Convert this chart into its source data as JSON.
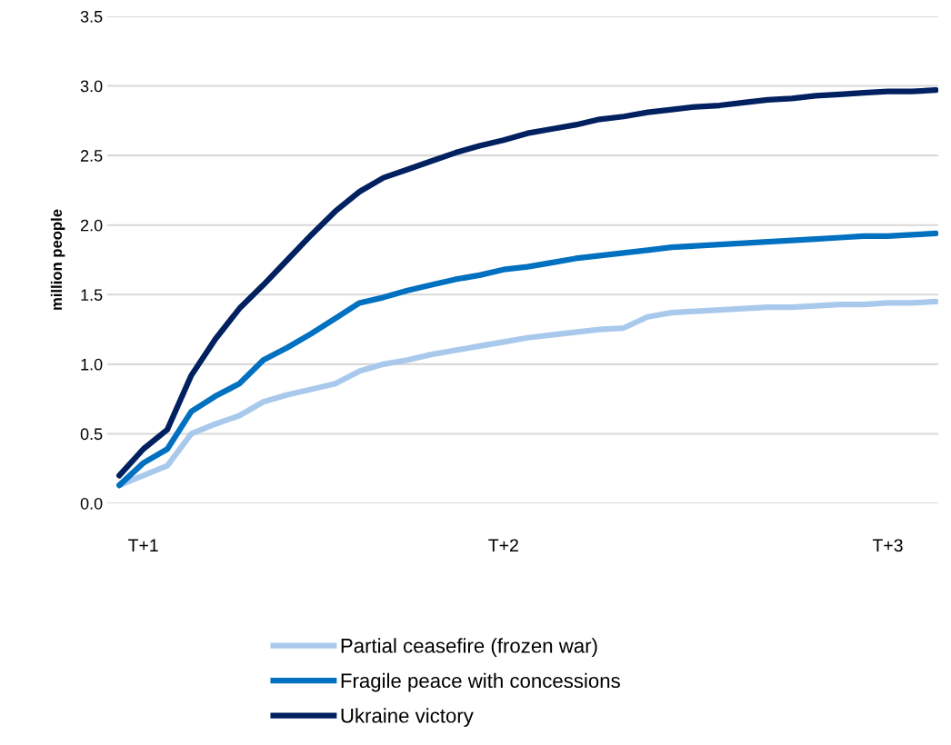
{
  "chart_data": {
    "type": "line",
    "ylabel": "million people",
    "categories": [
      null,
      "T+1",
      null,
      null,
      null,
      null,
      null,
      null,
      null,
      null,
      null,
      null,
      null,
      null,
      null,
      null,
      "T+2",
      null,
      null,
      null,
      null,
      null,
      null,
      null,
      null,
      null,
      null,
      null,
      null,
      null,
      null,
      null,
      "T+3",
      null,
      null
    ],
    "series": [
      {
        "name": "Partial ceasefire (frozen war)",
        "color": "#a9c9ec",
        "values": [
          0.13,
          0.2,
          0.27,
          0.5,
          0.57,
          0.63,
          0.73,
          0.78,
          0.82,
          0.86,
          0.95,
          1.0,
          1.03,
          1.07,
          1.1,
          1.13,
          1.16,
          1.19,
          1.21,
          1.23,
          1.25,
          1.26,
          1.34,
          1.37,
          1.38,
          1.39,
          1.4,
          1.41,
          1.41,
          1.42,
          1.43,
          1.43,
          1.44,
          1.44,
          1.45
        ]
      },
      {
        "name": "Fragile peace with concessions",
        "color": "#0070c0",
        "values": [
          0.13,
          0.29,
          0.39,
          0.66,
          0.77,
          0.86,
          1.03,
          1.12,
          1.22,
          1.33,
          1.44,
          1.48,
          1.53,
          1.57,
          1.61,
          1.64,
          1.68,
          1.7,
          1.73,
          1.76,
          1.78,
          1.8,
          1.82,
          1.84,
          1.85,
          1.86,
          1.87,
          1.88,
          1.89,
          1.9,
          1.91,
          1.92,
          1.92,
          1.93,
          1.94
        ]
      },
      {
        "name": "Ukraine victory",
        "color": "#002060",
        "values": [
          0.2,
          0.39,
          0.53,
          0.92,
          1.18,
          1.4,
          1.57,
          1.75,
          1.93,
          2.1,
          2.24,
          2.34,
          2.4,
          2.46,
          2.52,
          2.57,
          2.61,
          2.66,
          2.69,
          2.72,
          2.76,
          2.78,
          2.81,
          2.83,
          2.85,
          2.86,
          2.88,
          2.9,
          2.91,
          2.93,
          2.94,
          2.95,
          2.96,
          2.96,
          2.97
        ]
      }
    ],
    "ylim": [
      0,
      3.5
    ],
    "yticks": [
      {
        "value": 0,
        "label": "0.0"
      },
      {
        "value": 0.5,
        "label": "0.5"
      },
      {
        "value": 1,
        "label": "1.0"
      },
      {
        "value": 1.5,
        "label": "1.5"
      },
      {
        "value": 2,
        "label": "2.0"
      },
      {
        "value": 2.5,
        "label": "2.5"
      },
      {
        "value": 3,
        "label": "3.0"
      },
      {
        "value": 3.5,
        "label": "3.5"
      }
    ],
    "grid": "y",
    "legend": "bottom",
    "marker": "none",
    "line_style": "solid"
  }
}
